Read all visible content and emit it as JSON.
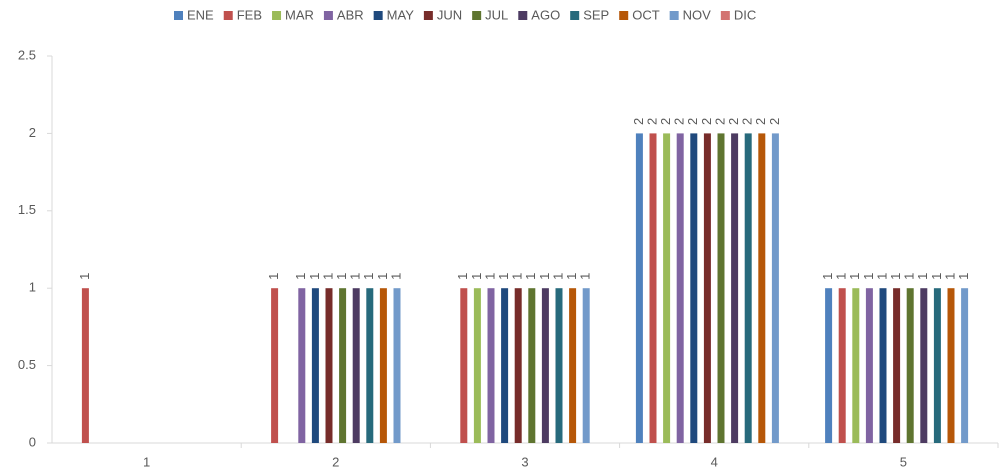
{
  "chart_data": {
    "type": "bar",
    "categories": [
      "1",
      "2",
      "3",
      "4",
      "5"
    ],
    "series": [
      {
        "name": "ENE",
        "color": "#4f81bd",
        "values": [
          null,
          null,
          null,
          2,
          1
        ]
      },
      {
        "name": "FEB",
        "color": "#c0504d",
        "values": [
          1,
          1,
          1,
          2,
          1
        ]
      },
      {
        "name": "MAR",
        "color": "#9bbb59",
        "values": [
          null,
          null,
          1,
          2,
          1
        ]
      },
      {
        "name": "ABR",
        "color": "#8064a2",
        "values": [
          null,
          1,
          1,
          2,
          1
        ]
      },
      {
        "name": "MAY",
        "color": "#1f497d",
        "values": [
          null,
          1,
          1,
          2,
          1
        ]
      },
      {
        "name": "JUN",
        "color": "#772c2a",
        "values": [
          null,
          1,
          1,
          2,
          1
        ]
      },
      {
        "name": "JUL",
        "color": "#5f7530",
        "values": [
          null,
          1,
          1,
          2,
          1
        ]
      },
      {
        "name": "AGO",
        "color": "#4d3b62",
        "values": [
          null,
          1,
          1,
          2,
          1
        ]
      },
      {
        "name": "SEP",
        "color": "#276a7c",
        "values": [
          null,
          1,
          1,
          2,
          1
        ]
      },
      {
        "name": "OCT",
        "color": "#b65708",
        "values": [
          null,
          1,
          1,
          2,
          1
        ]
      },
      {
        "name": "NOV",
        "color": "#729aca",
        "values": [
          null,
          1,
          1,
          2,
          1
        ]
      },
      {
        "name": "DIC",
        "color": "#d37371",
        "values": [
          null,
          null,
          null,
          null,
          null
        ]
      }
    ],
    "ylim": [
      0,
      2.5
    ],
    "yticks": [
      0,
      0.5,
      1,
      1.5,
      2,
      2.5
    ],
    "grid": false,
    "legend": "top"
  }
}
